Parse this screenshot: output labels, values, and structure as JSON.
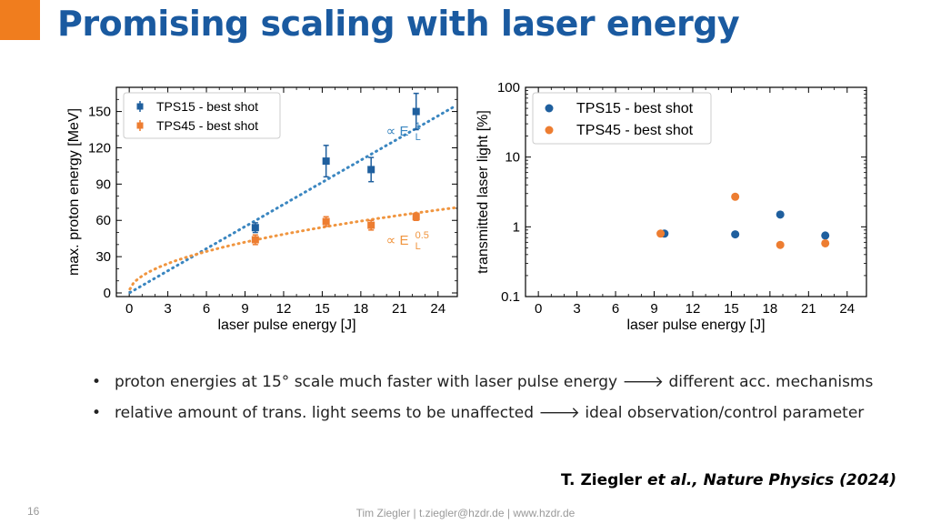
{
  "slide": {
    "title": "Promising scaling with laser energy",
    "accent_color": "#f07d1e",
    "title_color": "#1a5aa0"
  },
  "chart_data": [
    {
      "type": "scatter",
      "xlabel": "laser pulse energy [J]",
      "ylabel": "max. proton energy [MeV]",
      "xlim": [
        -1,
        25.5
      ],
      "ylim": [
        -3,
        170
      ],
      "xticks": [
        0,
        3,
        6,
        9,
        12,
        15,
        18,
        21,
        24
      ],
      "yticks": [
        0,
        30,
        60,
        90,
        120,
        150
      ],
      "legend_position": "top-left",
      "series": [
        {
          "name": "TPS15 - best shot",
          "color": "#1f5f9e",
          "points": [
            {
              "x": 9.8,
              "y": 54,
              "err": 4
            },
            {
              "x": 15.3,
              "y": 109,
              "err": 13
            },
            {
              "x": 18.8,
              "y": 102,
              "err": 10
            },
            {
              "x": 22.3,
              "y": 150,
              "err": 15
            }
          ]
        },
        {
          "name": "TPS45 - best shot",
          "color": "#ed7d31",
          "points": [
            {
              "x": 9.8,
              "y": 44,
              "err": 4
            },
            {
              "x": 15.3,
              "y": 59,
              "err": 4
            },
            {
              "x": 18.8,
              "y": 56,
              "err": 4
            },
            {
              "x": 22.3,
              "y": 63,
              "err": 3
            }
          ]
        }
      ],
      "fits": [
        {
          "label_main": "∝ E",
          "label_sup": "1",
          "label_sub": "L",
          "exponent": 1.0,
          "coefficient": 6.1,
          "color": "#3a86c0"
        },
        {
          "label_main": "∝ E",
          "label_sup": "0.5",
          "label_sub": "L",
          "exponent": 0.5,
          "coefficient": 14.0,
          "color": "#f0953f"
        }
      ]
    },
    {
      "type": "scatter",
      "xlabel": "laser pulse energy [J]",
      "ylabel": "transmitted laser light [%]",
      "xlim": [
        -1,
        25.5
      ],
      "ylim": [
        0.1,
        100
      ],
      "yscale": "log",
      "xticks": [
        0,
        3,
        6,
        9,
        12,
        15,
        18,
        21,
        24
      ],
      "yticks": [
        0.1,
        1,
        10,
        100
      ],
      "ytick_labels": [
        "0.1",
        "1",
        "10",
        "100"
      ],
      "legend_position": "top-left",
      "series": [
        {
          "name": "TPS15 - best shot",
          "color": "#1f5f9e",
          "points": [
            {
              "x": 9.8,
              "y": 0.8
            },
            {
              "x": 15.3,
              "y": 0.78
            },
            {
              "x": 18.8,
              "y": 1.5
            },
            {
              "x": 22.3,
              "y": 0.75
            }
          ]
        },
        {
          "name": "TPS45 - best shot",
          "color": "#ed7d31",
          "points": [
            {
              "x": 9.5,
              "y": 0.8
            },
            {
              "x": 15.3,
              "y": 2.7
            },
            {
              "x": 18.8,
              "y": 0.55
            },
            {
              "x": 22.3,
              "y": 0.58
            }
          ]
        }
      ]
    }
  ],
  "bullets": [
    {
      "marker": "•",
      "text": "proton energies at 15° scale much faster with laser pulse energy 🡒 different acc. mechanisms"
    },
    {
      "marker": "•",
      "text": "relative amount of trans. light seems to be unaffected 🡒 ideal observation/control parameter"
    }
  ],
  "citation": {
    "authors": "T. Ziegler",
    "etal": "et al.,",
    "journal": "Nature Physics (2024)"
  },
  "footer": {
    "page_number": "16",
    "text": "Tim Ziegler | t.ziegler@hzdr.de | www.hzdr.de"
  }
}
